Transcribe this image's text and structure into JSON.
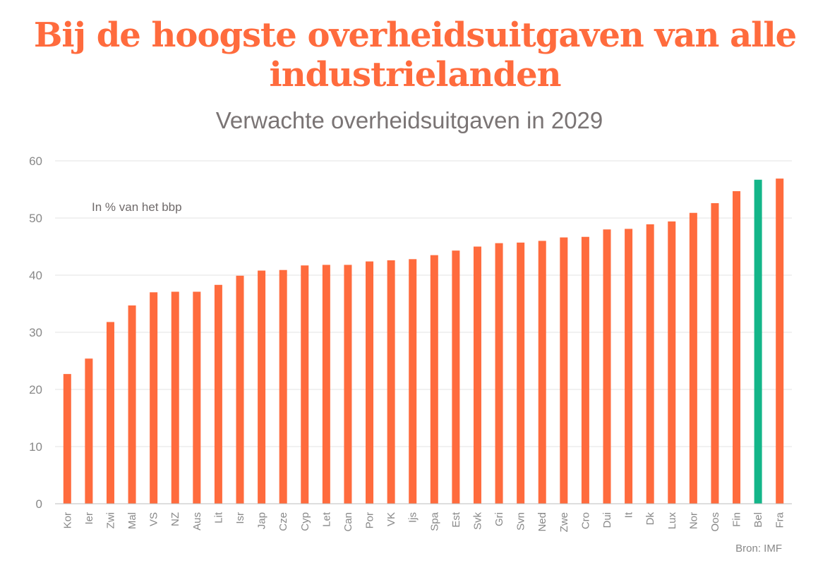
{
  "header": {
    "title": "Bij de hoogste overheidsuitgaven van alle industrielanden",
    "subtitle": "Verwachte overheidsuitgaven in 2029"
  },
  "chart_data": {
    "type": "bar",
    "title": "Bij de hoogste overheidsuitgaven van alle industrielanden",
    "subtitle": "Verwachte overheidsuitgaven in 2029",
    "annotation": "In % van het bbp",
    "source": "Bron: IMF",
    "categories": [
      "Kor",
      "Ier",
      "Zwi",
      "Mal",
      "VS",
      "NZ",
      "Aus",
      "Lit",
      "Isr",
      "Jap",
      "Cze",
      "Cyp",
      "Let",
      "Can",
      "Por",
      "VK",
      "Ijs",
      "Spa",
      "Est",
      "Svk",
      "Gri",
      "Svn",
      "Ned",
      "Zwe",
      "Cro",
      "Dui",
      "It",
      "Dk",
      "Lux",
      "Nor",
      "Oos",
      "Fin",
      "Bel",
      "Fra"
    ],
    "values": [
      22.7,
      25.4,
      31.8,
      34.7,
      37.0,
      37.1,
      37.1,
      38.3,
      39.9,
      40.8,
      40.9,
      41.7,
      41.8,
      41.8,
      42.4,
      42.6,
      42.8,
      43.5,
      44.3,
      45.0,
      45.6,
      45.7,
      46.0,
      46.6,
      46.7,
      48.0,
      48.1,
      48.9,
      49.4,
      50.9,
      52.6,
      54.7,
      56.7,
      56.9
    ],
    "highlight": "Bel",
    "colors": {
      "bar": "#ff6b3d",
      "highlight": "#13b589",
      "grid": "#e3e3e3",
      "axis": "#bdbdbd"
    },
    "yticks": [
      0,
      10,
      20,
      30,
      40,
      50,
      60
    ],
    "ylim": [
      0,
      60
    ],
    "grid": true
  }
}
